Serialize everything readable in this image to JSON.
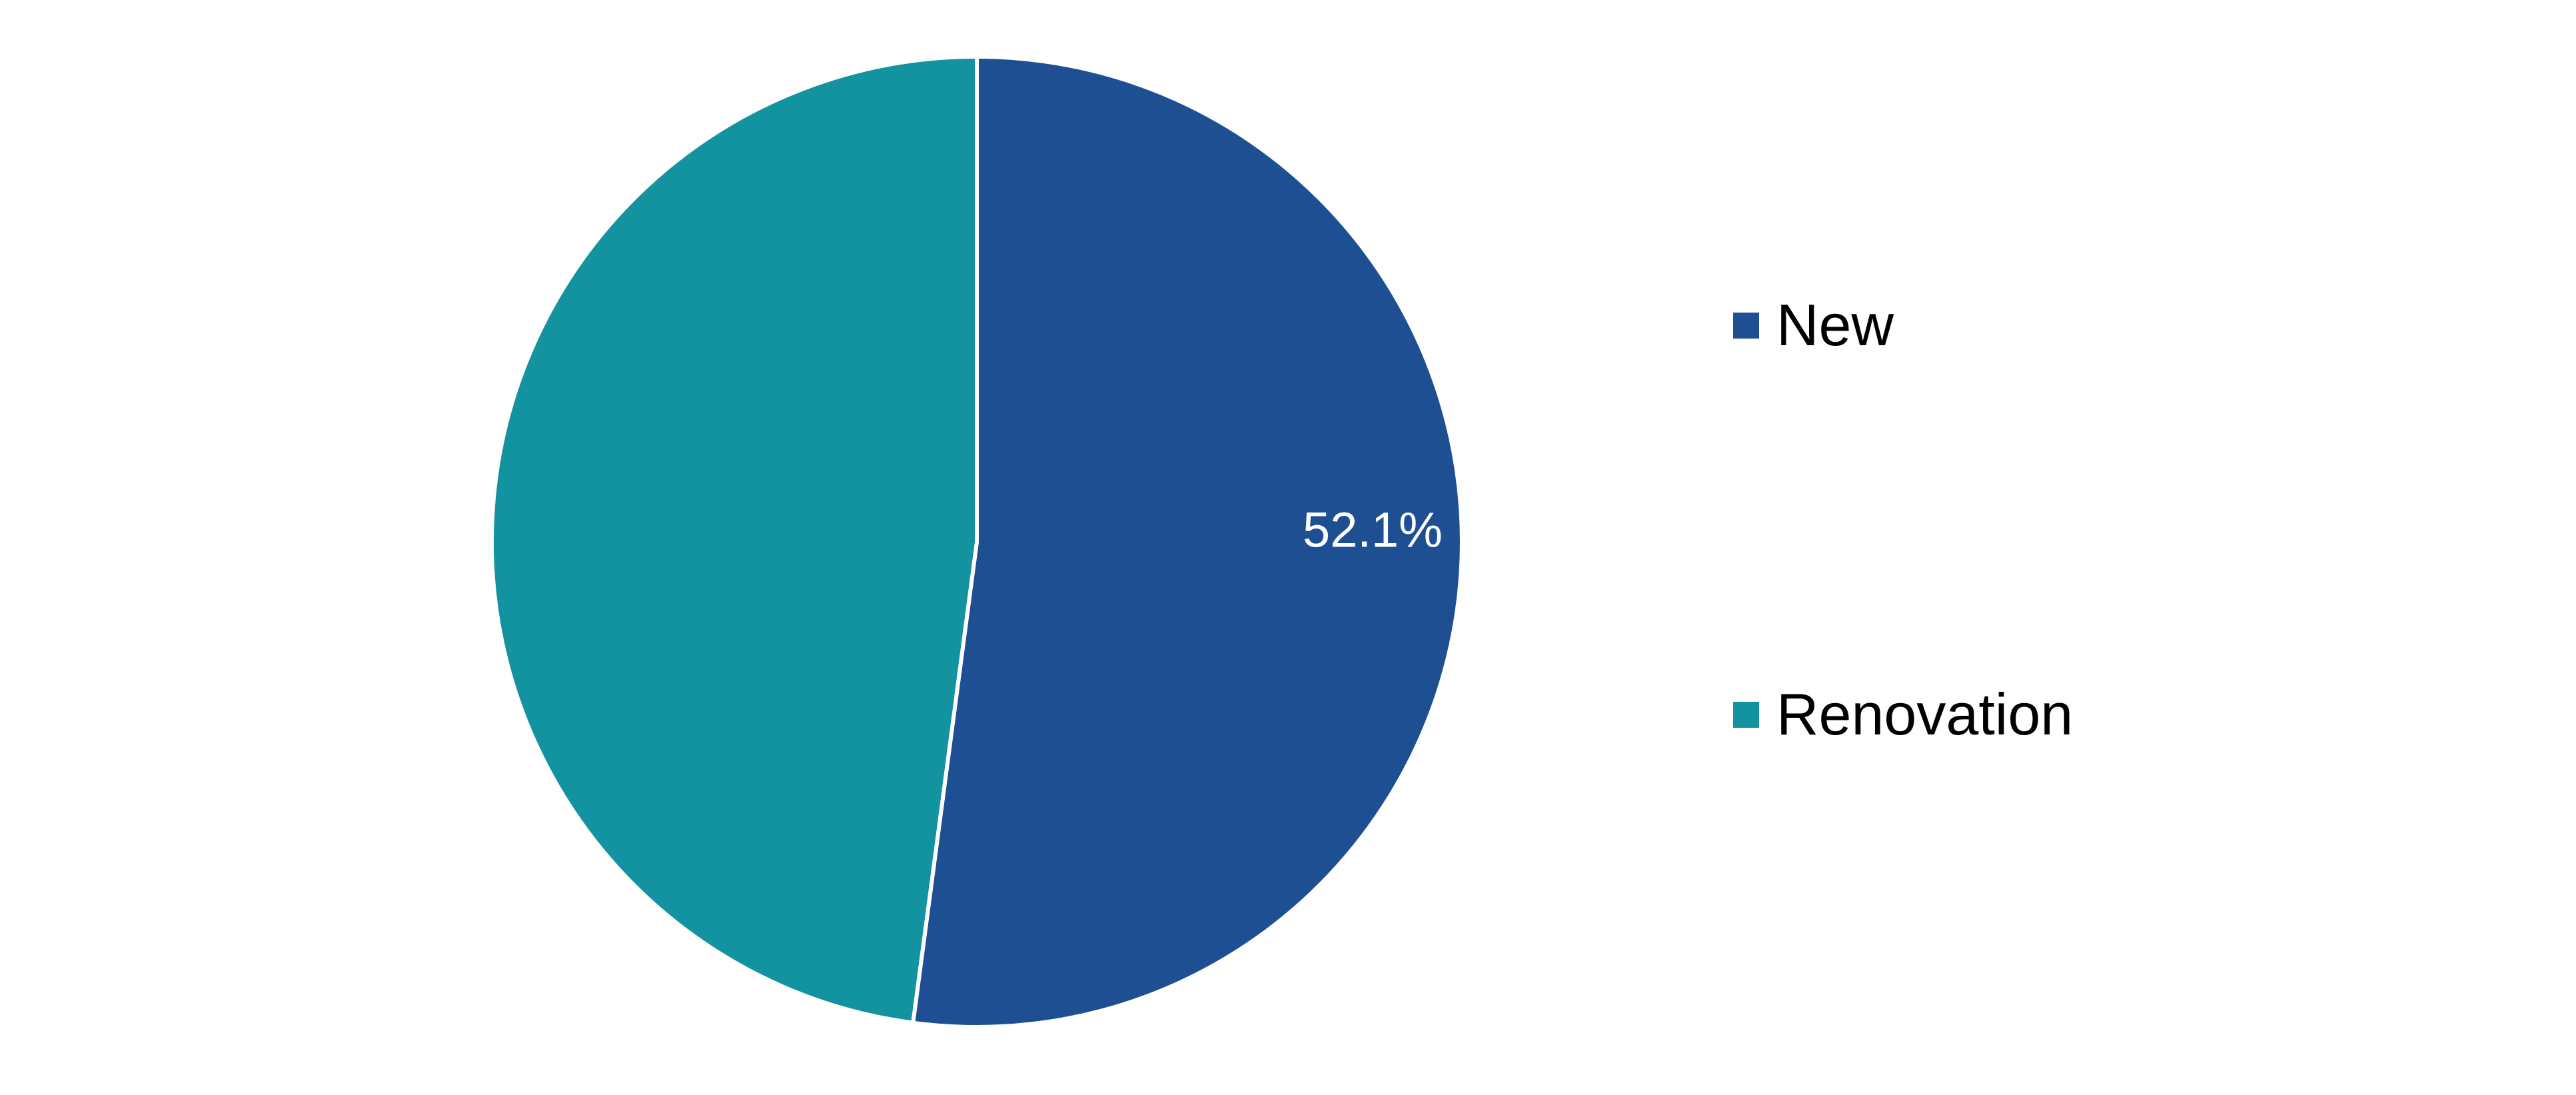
{
  "chart_data": {
    "type": "pie",
    "categories": [
      "New",
      "Renovation"
    ],
    "values": [
      52.1,
      47.9
    ],
    "unit": "%",
    "colors": [
      "#1f4f93",
      "#13929f"
    ],
    "data_labels": [
      "52.1%",
      ""
    ],
    "start_angle": "12 o'clock",
    "direction": "clockwise",
    "legend": {
      "position": "right",
      "entries": [
        "New",
        "Renovation"
      ]
    }
  }
}
